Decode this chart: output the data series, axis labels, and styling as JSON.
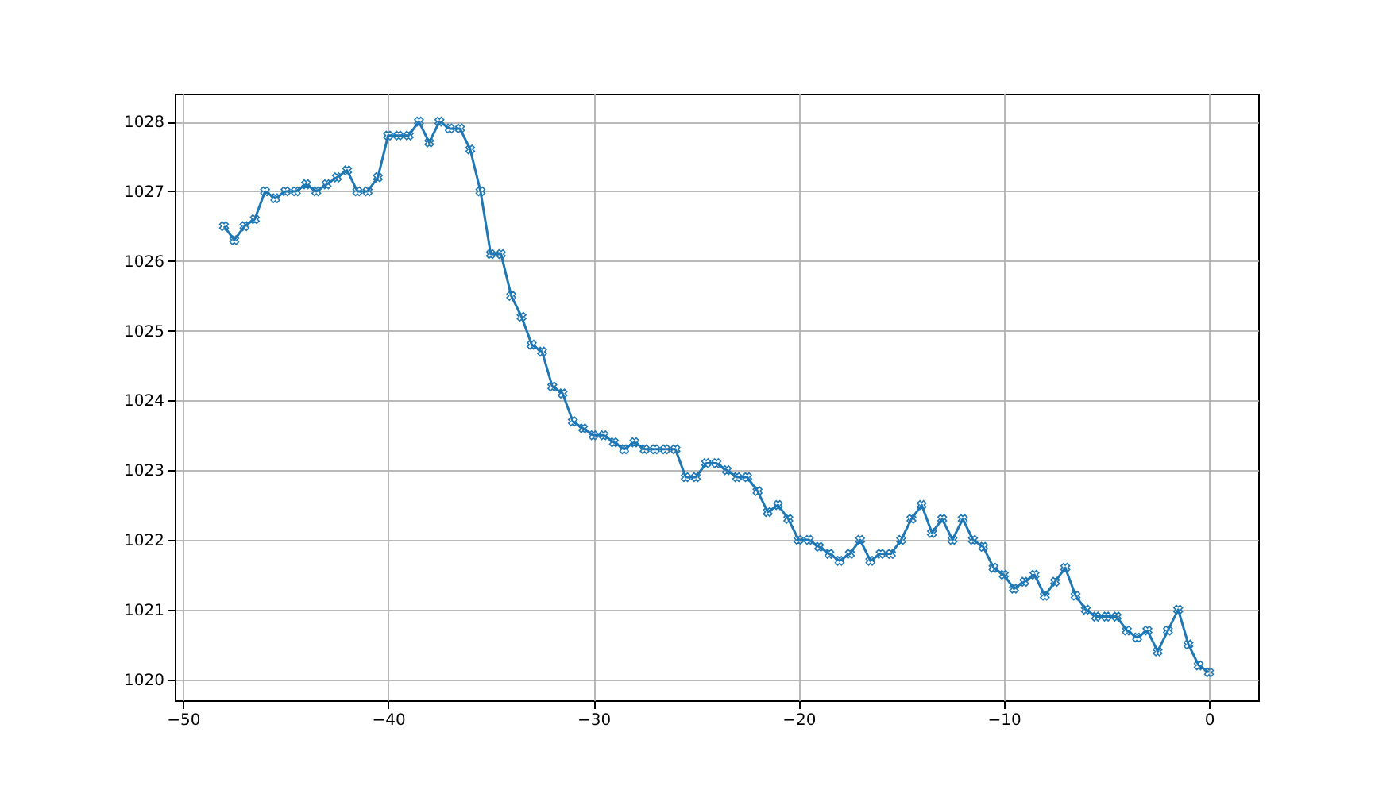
{
  "chart_data": {
    "type": "line",
    "x": [
      -48,
      -47.5,
      -47,
      -46.5,
      -46,
      -45.5,
      -45,
      -44.5,
      -44,
      -43.5,
      -43,
      -42.5,
      -42,
      -41.5,
      -41,
      -40.5,
      -40,
      -39.5,
      -39,
      -38.5,
      -38,
      -37.5,
      -37,
      -36.5,
      -36,
      -35.5,
      -35,
      -34.5,
      -34,
      -33.5,
      -33,
      -32.5,
      -32,
      -31.5,
      -31,
      -30.5,
      -30,
      -29.5,
      -29,
      -28.5,
      -28,
      -27.5,
      -27,
      -26.5,
      -26,
      -25.5,
      -25,
      -24.5,
      -24,
      -23.5,
      -23,
      -22.5,
      -22,
      -21.5,
      -21,
      -20.5,
      -20,
      -19.5,
      -19,
      -18.5,
      -18,
      -17.5,
      -17,
      -16.5,
      -16,
      -15.5,
      -15,
      -14.5,
      -14,
      -13.5,
      -13,
      -12.5,
      -12,
      -11.5,
      -11,
      -10.5,
      -10,
      -9.5,
      -9,
      -8.5,
      -8,
      -7.5,
      -7,
      -6.5,
      -6,
      -5.5,
      -5,
      -4.5,
      -4,
      -3.5,
      -3,
      -2.5,
      -2,
      -1.5,
      -1,
      -0.5,
      0
    ],
    "series": [
      {
        "color": "#1f77b4",
        "values": [
          1026.5,
          1026.3,
          1026.5,
          1026.6,
          1027.0,
          1026.9,
          1027.0,
          1027.0,
          1027.1,
          1027.0,
          1027.1,
          1027.2,
          1027.3,
          1027.0,
          1027.0,
          1027.2,
          1027.8,
          1027.8,
          1027.8,
          1028.0,
          1027.7,
          1028.0,
          1027.9,
          1027.9,
          1027.6,
          1027.0,
          1026.1,
          1026.1,
          1025.5,
          1025.2,
          1024.8,
          1024.7,
          1024.2,
          1024.1,
          1023.7,
          1023.6,
          1023.5,
          1023.5,
          1023.4,
          1023.3,
          1023.4,
          1023.3,
          1023.3,
          1023.3,
          1023.3,
          1022.9,
          1022.9,
          1023.1,
          1023.1,
          1023.0,
          1022.9,
          1022.9,
          1022.7,
          1022.4,
          1022.5,
          1022.3,
          1022.0,
          1022.0,
          1021.9,
          1021.8,
          1021.7,
          1021.8,
          1022.0,
          1021.7,
          1021.8,
          1021.8,
          1022.0,
          1022.3,
          1022.5,
          1022.1,
          1022.3,
          1022.0,
          1022.3,
          1022.0,
          1021.9,
          1021.6,
          1021.5,
          1021.3,
          1021.4,
          1021.5,
          1021.2,
          1021.4,
          1021.6,
          1021.2,
          1021.0,
          1020.9,
          1020.9,
          1020.9,
          1020.7,
          1020.6,
          1020.7,
          1020.4,
          1020.7,
          1021.0,
          1020.5,
          1020.2,
          1020.1
        ]
      }
    ],
    "xlim": [
      -50.4,
      2.4
    ],
    "xticks": [
      -50,
      -40,
      -30,
      -20,
      -10,
      0
    ],
    "ylim": [
      1019.7,
      1028.4
    ],
    "yticks": [
      1020,
      1021,
      1022,
      1023,
      1024,
      1025,
      1026,
      1027,
      1028
    ],
    "grid": true,
    "marker": "cross",
    "line_style": "solid"
  }
}
